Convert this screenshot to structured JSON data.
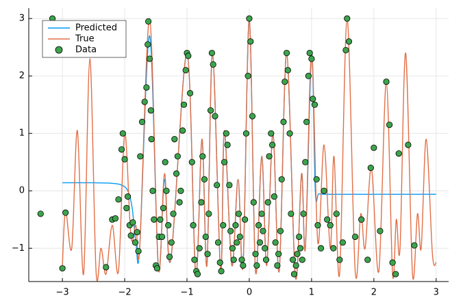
{
  "chart_data": {
    "type": "line",
    "xlim": [
      -3.54,
      3.2
    ],
    "ylim": [
      -1.58,
      3.18
    ],
    "xticks": [
      {
        "value": -3,
        "label": "−3"
      },
      {
        "value": -2,
        "label": "−2"
      },
      {
        "value": -1,
        "label": "−1"
      },
      0,
      1,
      2,
      3
    ],
    "yticks": [
      {
        "value": -1,
        "label": "−1"
      },
      0,
      1,
      2,
      3
    ],
    "grid": true,
    "legend": "top-left",
    "series": [
      {
        "name": "Predicted",
        "color": "#009af9",
        "mode": "line",
        "x": [
          -3,
          -2.5,
          -2.2,
          -2.05,
          -1.95,
          -1.88,
          -1.82,
          -1.76,
          -1.6,
          -1.46,
          -1.36,
          -1.26,
          -1.0,
          -0.86,
          -0.76,
          -0.68,
          -0.59,
          -0.46,
          -0.4,
          -0.28,
          -0.18,
          -0.1,
          0.0,
          0.1,
          0.2,
          0.28,
          0.38,
          0.48,
          0.6,
          0.74,
          0.84,
          0.9,
          1.0,
          1.06,
          1.12,
          1.3,
          2.0,
          3.0
        ],
        "values": [
          0.14,
          0.14,
          0.13,
          0.1,
          0.0,
          -0.3,
          -0.9,
          -1.0,
          2.7,
          -1.3,
          0.2,
          -1.2,
          2.4,
          -1.45,
          0.9,
          -1.3,
          2.4,
          -1.4,
          1.05,
          -1.3,
          0.2,
          -1.3,
          3.0,
          -1.4,
          0.6,
          -1.3,
          1.0,
          -1.4,
          2.4,
          -1.5,
          0.3,
          -1.0,
          2.4,
          0.0,
          -0.05,
          -0.06,
          -0.06,
          -0.06
        ]
      },
      {
        "name": "True",
        "color": "#e26f46",
        "mode": "line",
        "x": [
          -3,
          -2.95,
          -2.85,
          -2.76,
          -2.66,
          -2.56,
          -2.46,
          -2.38,
          -2.3,
          -2.2,
          -2.1,
          -2.0,
          -1.9,
          -1.82,
          -1.76,
          -1.6,
          -1.46,
          -1.36,
          -1.26,
          -1.0,
          -0.86,
          -0.76,
          -0.68,
          -0.59,
          -0.46,
          -0.4,
          -0.28,
          -0.18,
          -0.1,
          0.0,
          0.1,
          0.2,
          0.28,
          0.38,
          0.48,
          0.6,
          0.74,
          0.84,
          0.9,
          1.0,
          1.1,
          1.2,
          1.3,
          1.36,
          1.45,
          1.57,
          1.7,
          1.79,
          1.86,
          1.96,
          2.08,
          2.2,
          2.3,
          2.36,
          2.42,
          2.51,
          2.62,
          2.7,
          2.76,
          2.84,
          2.94,
          3.0
        ],
        "values": [
          -1.3,
          -0.35,
          -1.0,
          1.05,
          -1.45,
          2.3,
          -1.4,
          -1.0,
          -1.45,
          -0.6,
          -1.4,
          1.0,
          -0.8,
          -0.6,
          -1.0,
          3.0,
          -1.35,
          0.3,
          -1.2,
          2.4,
          -1.45,
          0.9,
          -1.3,
          2.4,
          -1.4,
          1.05,
          -1.3,
          0.2,
          -1.3,
          3.0,
          -1.4,
          0.6,
          -1.3,
          1.0,
          -1.4,
          2.4,
          -1.5,
          0.3,
          -1.0,
          2.4,
          -0.9,
          0.8,
          -1.0,
          0.6,
          -1.45,
          3.0,
          -1.4,
          -0.4,
          -1.0,
          0.4,
          -1.4,
          1.9,
          -1.45,
          -0.5,
          -1.0,
          2.4,
          -1.45,
          -0.4,
          -1.0,
          0.9,
          -1.1,
          -1.25
        ]
      },
      {
        "name": "Data",
        "color": "#3da44d",
        "mode": "scatter",
        "x": [
          -3.35,
          -3.16,
          -3.0,
          -2.95,
          -2.3,
          -2.2,
          -2.15,
          -2.1,
          -2.05,
          -2.03,
          -2.0,
          -1.97,
          -1.95,
          -1.92,
          -1.9,
          -1.87,
          -1.83,
          -1.8,
          -1.78,
          -1.75,
          -1.72,
          -1.68,
          -1.65,
          -1.63,
          -1.62,
          -1.6,
          -1.58,
          -1.57,
          -1.55,
          -1.53,
          -1.5,
          -1.48,
          -1.45,
          -1.43,
          -1.4,
          -1.38,
          -1.35,
          -1.33,
          -1.3,
          -1.28,
          -1.25,
          -1.22,
          -1.2,
          -1.17,
          -1.15,
          -1.12,
          -1.1,
          -1.07,
          -1.05,
          -1.02,
          -1.0,
          -0.98,
          -0.95,
          -0.92,
          -0.9,
          -0.88,
          -0.85,
          -0.83,
          -0.8,
          -0.77,
          -0.75,
          -0.72,
          -0.7,
          -0.67,
          -0.65,
          -0.62,
          -0.6,
          -0.58,
          -0.55,
          -0.52,
          -0.5,
          -0.47,
          -0.45,
          -0.42,
          -0.4,
          -0.37,
          -0.35,
          -0.32,
          -0.3,
          -0.27,
          -0.25,
          -0.22,
          -0.2,
          -0.17,
          -0.15,
          -0.12,
          -0.1,
          -0.07,
          -0.05,
          -0.02,
          0.0,
          0.02,
          0.05,
          0.07,
          0.1,
          0.12,
          0.15,
          0.17,
          0.2,
          0.22,
          0.25,
          0.27,
          0.3,
          0.32,
          0.35,
          0.37,
          0.4,
          0.42,
          0.45,
          0.47,
          0.5,
          0.52,
          0.55,
          0.57,
          0.6,
          0.62,
          0.65,
          0.67,
          0.7,
          0.72,
          0.75,
          0.77,
          0.8,
          0.82,
          0.85,
          0.87,
          0.9,
          0.92,
          0.95,
          0.97,
          1.0,
          1.02,
          1.05,
          1.08,
          1.1,
          1.15,
          1.2,
          1.25,
          1.3,
          1.35,
          1.4,
          1.45,
          1.5,
          1.55,
          1.57,
          1.6,
          1.7,
          1.8,
          1.9,
          1.95,
          2.0,
          2.1,
          2.2,
          2.25,
          2.3,
          2.35,
          2.4,
          2.55,
          2.65
        ],
        "values": [
          -0.4,
          3.0,
          -1.35,
          -0.38,
          -1.33,
          -0.5,
          -0.48,
          -0.15,
          0.72,
          1.0,
          0.55,
          -0.3,
          -0.1,
          -0.6,
          -0.78,
          -0.55,
          -0.9,
          -0.72,
          -1.05,
          0.6,
          1.2,
          1.55,
          1.8,
          2.55,
          2.95,
          2.3,
          1.4,
          0.9,
          0.0,
          -0.5,
          -1.3,
          -1.35,
          -0.8,
          -0.5,
          -0.8,
          -0.3,
          0.5,
          0.0,
          -0.6,
          -1.15,
          -0.9,
          -0.4,
          0.9,
          0.3,
          0.6,
          -0.2,
          0.0,
          1.05,
          1.5,
          2.1,
          2.4,
          2.35,
          1.7,
          0.5,
          -0.6,
          -1.2,
          -1.4,
          -1.45,
          -1.0,
          -0.2,
          0.6,
          0.2,
          -0.8,
          -1.1,
          -0.4,
          1.4,
          2.4,
          2.2,
          1.3,
          0.1,
          -0.9,
          -1.25,
          -1.4,
          -0.6,
          0.5,
          1.0,
          0.8,
          0.1,
          -0.7,
          -1.0,
          -1.2,
          -0.6,
          -0.9,
          -0.4,
          -0.8,
          -1.2,
          -1.3,
          -0.5,
          1.0,
          2.0,
          3.0,
          2.6,
          1.3,
          -0.2,
          -1.1,
          -1.3,
          -0.6,
          -0.9,
          -0.4,
          -0.7,
          -1.0,
          -1.2,
          -0.2,
          0.6,
          1.0,
          0.8,
          -0.1,
          -0.9,
          -1.3,
          -1.1,
          -0.7,
          0.2,
          1.2,
          1.9,
          2.4,
          2.1,
          1.0,
          -0.4,
          -1.2,
          -1.45,
          -1.3,
          -1.1,
          -0.8,
          -1.0,
          -1.2,
          -0.4,
          0.5,
          1.2,
          2.0,
          2.4,
          2.3,
          1.6,
          1.5,
          0.2,
          -0.6,
          -1.0,
          0.0,
          -0.5,
          -0.6,
          -1.0,
          -0.4,
          -1.2,
          -0.9,
          2.45,
          3.0,
          2.6,
          -0.8,
          -0.5,
          -1.2,
          0.4,
          0.75,
          -0.7,
          1.9,
          1.15,
          -1.25,
          -1.45,
          0.65,
          0.8,
          -0.95
        ]
      }
    ]
  }
}
